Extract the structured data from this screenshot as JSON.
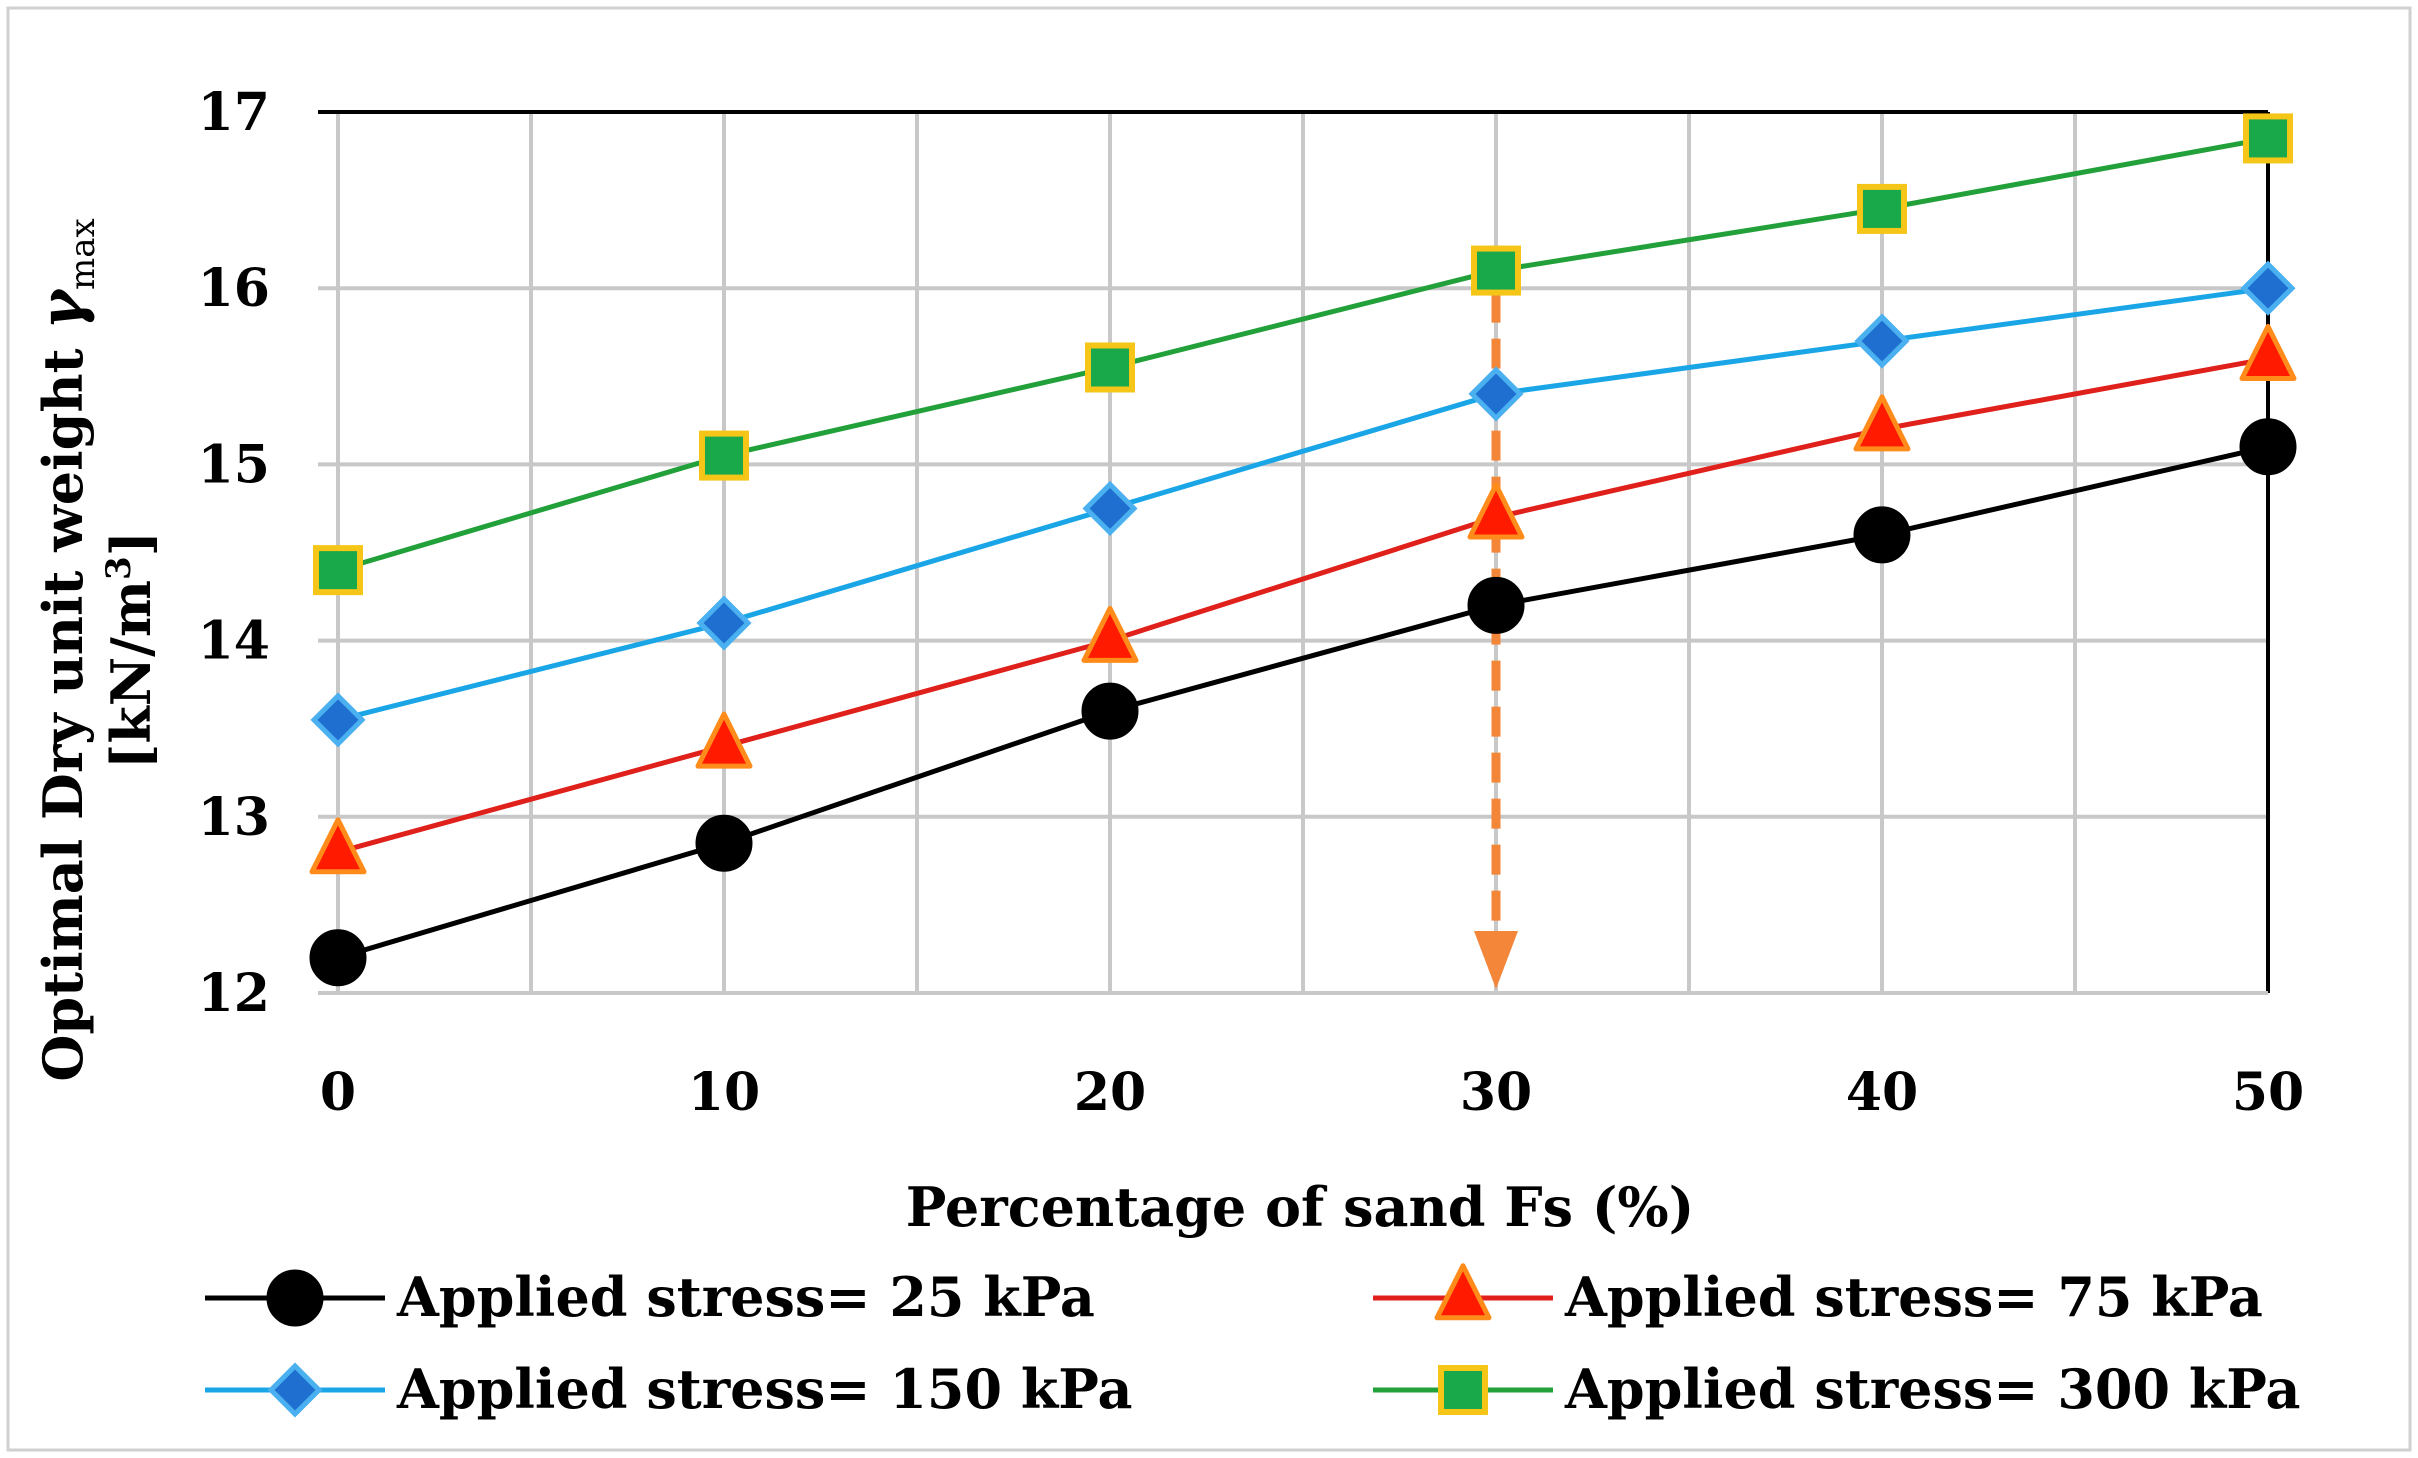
{
  "chart_data": {
    "type": "line",
    "title": "",
    "x": [
      0,
      10,
      20,
      30,
      40,
      50
    ],
    "xlim": [
      0,
      50
    ],
    "x_ticks": [
      "0",
      "10",
      "20",
      "30",
      "40",
      "50"
    ],
    "ylim": [
      12,
      17
    ],
    "y_ticks": [
      "12",
      "13",
      "14",
      "15",
      "16",
      "17"
    ],
    "xlabel": "Percentage of sand  Fs (%)",
    "ylabel_line1": "Optimal Dry unit weight ",
    "ylabel_symbol": "γ",
    "ylabel_sub": "max",
    "ylabel_line2_prefix": "[kN/m",
    "ylabel_sup": "3",
    "ylabel_line2_suffix": "]",
    "grid": true,
    "series": [
      {
        "name": "Applied stress= 25 kPa",
        "color": "#000000",
        "marker": "circle",
        "marker_fill": "#000000",
        "marker_stroke": "#000000",
        "values": [
          12.2,
          12.85,
          13.6,
          14.2,
          14.6,
          15.1
        ]
      },
      {
        "name": "Applied stress= 75 kPa",
        "color": "#e0201b",
        "marker": "triangle",
        "marker_fill": "#ff1a00",
        "marker_stroke": "#ff8c1a",
        "values": [
          12.8,
          13.4,
          14.0,
          14.7,
          15.2,
          15.6
        ]
      },
      {
        "name": "Applied stress= 150 kPa",
        "color": "#1aa6e6",
        "marker": "diamond",
        "marker_fill": "#1f6fd0",
        "marker_stroke": "#4ab0f0",
        "values": [
          13.55,
          14.1,
          14.75,
          15.4,
          15.7,
          16.0
        ]
      },
      {
        "name": "Applied stress= 300 kPa",
        "color": "#22a03a",
        "marker": "square",
        "marker_fill": "#19a84a",
        "marker_stroke": "#f5c518",
        "values": [
          14.4,
          15.05,
          15.55,
          16.1,
          16.45,
          16.85
        ]
      }
    ],
    "annotation": {
      "type": "dashed-arrow",
      "x": 30,
      "from_y": 16.1,
      "to_y": 12,
      "color": "#f4863a"
    },
    "legend_position": "bottom"
  }
}
